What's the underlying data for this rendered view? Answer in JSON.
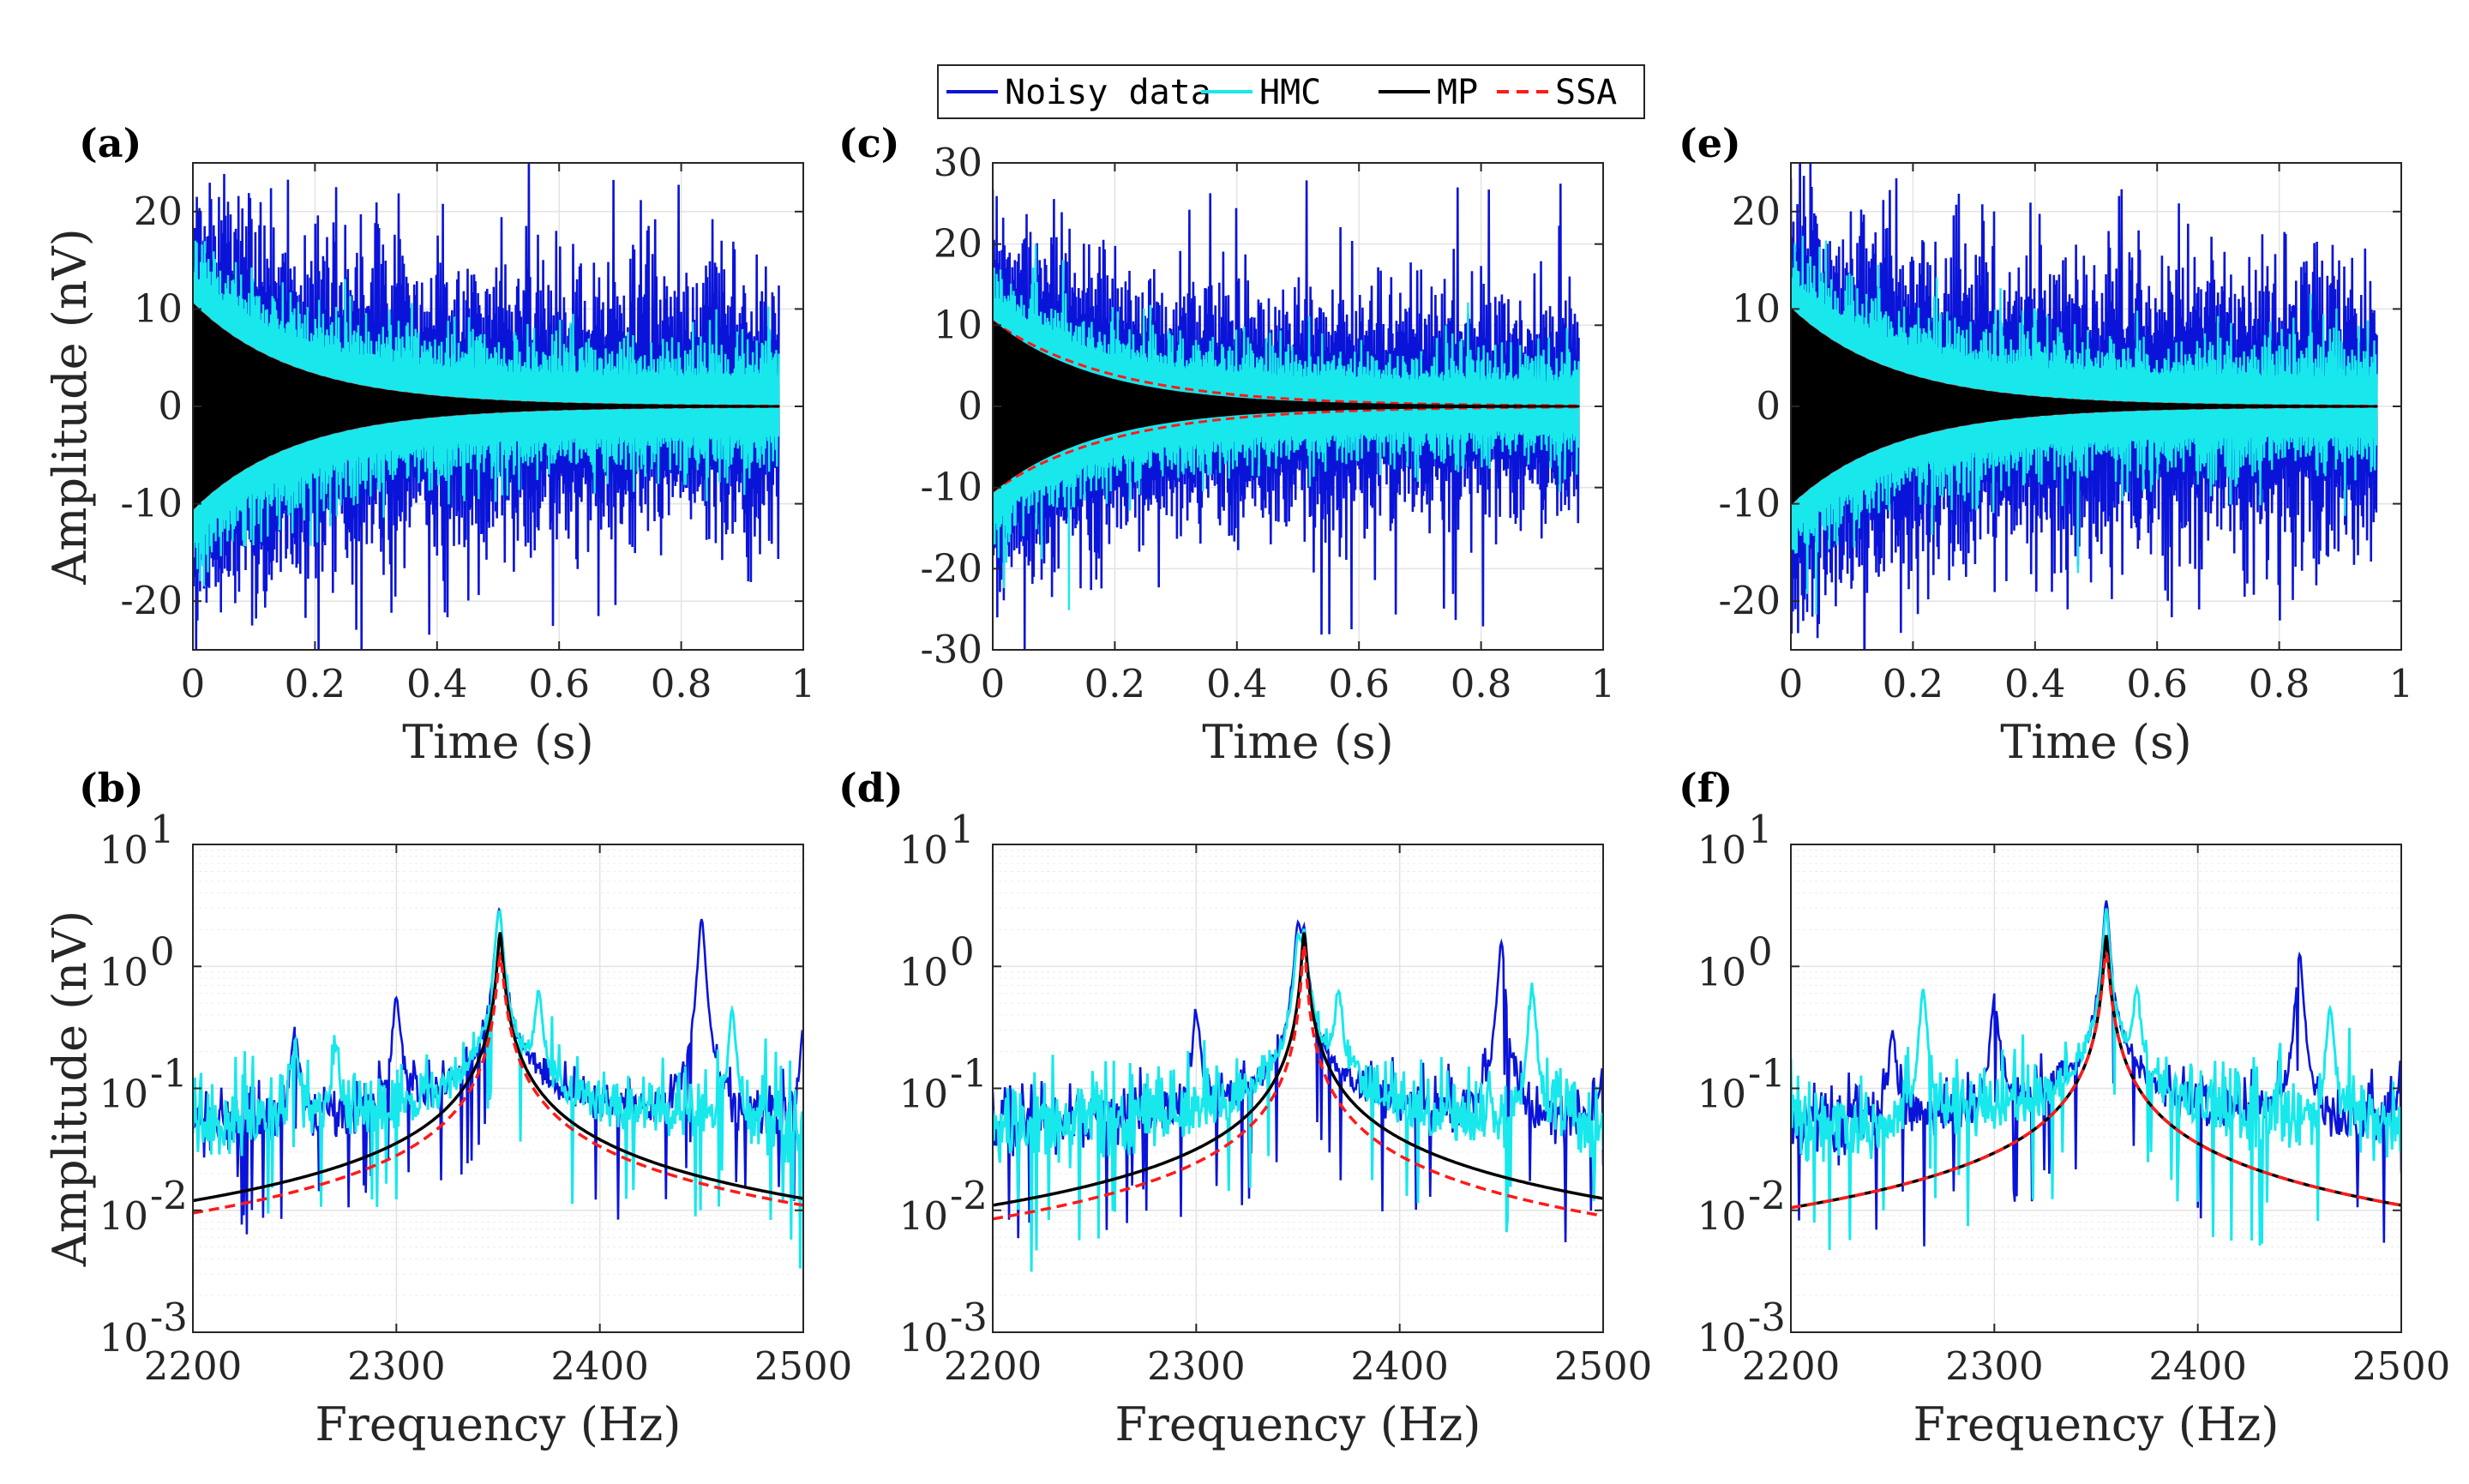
{
  "legend": {
    "entries": [
      {
        "label": "Noisy data",
        "color": "#0a14d8",
        "dash": false
      },
      {
        "label": "HMC",
        "color": "#18e8ec",
        "dash": false
      },
      {
        "label": "MP",
        "color": "#000000",
        "dash": false
      },
      {
        "label": "SSA",
        "color": "#ff1a1a",
        "dash": true
      }
    ]
  },
  "colors": {
    "noisy": "#0a14d8",
    "hmc": "#18e8ec",
    "mp": "#000000",
    "ssa": "#ff1a1a"
  },
  "chart_data": [
    {
      "panel": "(a)",
      "type": "line",
      "domain": "time",
      "xlabel": "Time (s)",
      "ylabel": "Amplitude (nV)",
      "xlim": [
        0,
        1
      ],
      "ylim": [
        -25,
        25
      ],
      "xticks": [
        0,
        0.2,
        0.4,
        0.6,
        0.8,
        1
      ],
      "xticklabels": [
        "0",
        "0.2",
        "0.4",
        "0.6",
        "0.8",
        "1"
      ],
      "yticks": [
        -20,
        -10,
        0,
        10,
        20
      ],
      "yticklabels": [
        "-20",
        "-10",
        "0",
        "10",
        "20"
      ],
      "grid": true,
      "data_end_time": 0.96,
      "series": [
        {
          "name": "Noisy data",
          "envelope": "peaks ~±15 nV, max ~25 nV"
        },
        {
          "name": "HMC",
          "envelope": "~±8 nV"
        },
        {
          "name": "MP",
          "initial_amplitude": 10.5,
          "decay_time_s": 0.17
        },
        {
          "name": "SSA",
          "initial_amplitude": 10.5,
          "decay_time_s": 0.17
        }
      ]
    },
    {
      "panel": "(c)",
      "type": "line",
      "domain": "time",
      "xlabel": "Time (s)",
      "ylabel": "",
      "xlim": [
        0,
        1
      ],
      "ylim": [
        -30,
        30
      ],
      "xticks": [
        0,
        0.2,
        0.4,
        0.6,
        0.8,
        1
      ],
      "xticklabels": [
        "0",
        "0.2",
        "0.4",
        "0.6",
        "0.8",
        "1"
      ],
      "yticks": [
        -30,
        -20,
        -10,
        0,
        10,
        20,
        30
      ],
      "yticklabels": [
        "-30",
        "-20",
        "-10",
        "0",
        "10",
        "20",
        "30"
      ],
      "grid": true,
      "data_end_time": 0.96,
      "series": [
        {
          "name": "Noisy data",
          "envelope": "peaks ~±16 nV, max ~29 nV"
        },
        {
          "name": "HMC",
          "envelope": "~±8 nV"
        },
        {
          "name": "MP",
          "initial_amplitude": 10.5,
          "decay_time_s": 0.17
        },
        {
          "name": "SSA",
          "initial_amplitude": 10.5,
          "decay_time_s": 0.2
        }
      ]
    },
    {
      "panel": "(e)",
      "type": "line",
      "domain": "time",
      "xlabel": "Time (s)",
      "ylabel": "",
      "xlim": [
        0,
        1
      ],
      "ylim": [
        -25,
        25
      ],
      "xticks": [
        0,
        0.2,
        0.4,
        0.6,
        0.8,
        1
      ],
      "xticklabels": [
        "0",
        "0.2",
        "0.4",
        "0.6",
        "0.8",
        "1"
      ],
      "yticks": [
        -20,
        -10,
        0,
        10,
        20
      ],
      "yticklabels": [
        "-20",
        "-10",
        "0",
        "10",
        "20"
      ],
      "grid": true,
      "data_end_time": 0.96,
      "series": [
        {
          "name": "Noisy data",
          "envelope": "peaks ~±16 nV, max ~26 nV"
        },
        {
          "name": "HMC",
          "envelope": "~±8 nV"
        },
        {
          "name": "MP",
          "initial_amplitude": 10,
          "decay_time_s": 0.17
        },
        {
          "name": "SSA",
          "initial_amplitude": 10,
          "decay_time_s": 0.17
        }
      ]
    },
    {
      "panel": "(b)",
      "type": "line",
      "domain": "frequency",
      "xlabel": "Frequency (Hz)",
      "ylabel": "Amplitude (nV)",
      "xlim": [
        2200,
        2500
      ],
      "ylim": [
        0.001,
        10
      ],
      "yscale": "log",
      "xticks": [
        2200,
        2300,
        2400,
        2500
      ],
      "xticklabels": [
        "2200",
        "2300",
        "2400",
        "2500"
      ],
      "yticks": [
        0.001,
        0.01,
        0.1,
        1,
        10
      ],
      "yticklabels": [
        "10",
        "10",
        "10",
        "10",
        "10"
      ],
      "ytickexponents": [
        "-3",
        "-2",
        "-1",
        "0",
        "1"
      ],
      "grid": true,
      "series": [
        {
          "name": "Noisy data",
          "baseline": 0.04,
          "peaks": [
            [
              2250,
              0.25
            ],
            [
              2300,
              0.5
            ],
            [
              2350,
              1.5
            ],
            [
              2450,
              2.4
            ],
            [
              2500,
              0.25
            ]
          ]
        },
        {
          "name": "HMC",
          "baseline": 0.04,
          "peaks": [
            [
              2250,
              0.2
            ],
            [
              2270,
              0.15
            ],
            [
              2350,
              1.4
            ],
            [
              2370,
              0.5
            ],
            [
              2465,
              0.4
            ]
          ]
        },
        {
          "name": "MP",
          "center_hz": 2351,
          "peak": 1.9,
          "value_at_2200": 0.012,
          "value_at_2500": 0.0125
        },
        {
          "name": "SSA",
          "center_hz": 2351,
          "peak": 1.2,
          "value_at_2200": 0.0095,
          "value_at_2500": 0.011
        }
      ]
    },
    {
      "panel": "(d)",
      "type": "line",
      "domain": "frequency",
      "xlabel": "Frequency (Hz)",
      "ylabel": "",
      "xlim": [
        2200,
        2500
      ],
      "ylim": [
        0.001,
        10
      ],
      "yscale": "log",
      "xticks": [
        2200,
        2300,
        2400,
        2500
      ],
      "xticklabels": [
        "2200",
        "2300",
        "2400",
        "2500"
      ],
      "yticks": [
        0.001,
        0.01,
        0.1,
        1,
        10
      ],
      "yticklabels": [
        "10",
        "10",
        "10",
        "10",
        "10"
      ],
      "ytickexponents": [
        "-3",
        "-2",
        "-1",
        "0",
        "1"
      ],
      "grid": true,
      "series": [
        {
          "name": "Noisy data",
          "baseline": 0.04,
          "peaks": [
            [
              2300,
              0.35
            ],
            [
              2350,
              1.8
            ],
            [
              2450,
              1.5
            ],
            [
              2500,
              0.1
            ]
          ]
        },
        {
          "name": "HMC",
          "baseline": 0.04,
          "peaks": [
            [
              2350,
              1.3
            ],
            [
              2370,
              0.5
            ],
            [
              2465,
              0.6
            ]
          ]
        },
        {
          "name": "MP",
          "center_hz": 2353,
          "peak": 1.9,
          "value_at_2200": 0.011,
          "value_at_2500": 0.0125
        },
        {
          "name": "SSA",
          "center_hz": 2353,
          "peak": 1.5,
          "value_at_2200": 0.0085,
          "value_at_2500": 0.009
        }
      ]
    },
    {
      "panel": "(f)",
      "type": "line",
      "domain": "frequency",
      "xlabel": "Frequency (Hz)",
      "ylabel": "",
      "xlim": [
        2200,
        2500
      ],
      "ylim": [
        0.001,
        10
      ],
      "yscale": "log",
      "xticks": [
        2200,
        2300,
        2400,
        2500
      ],
      "xticklabels": [
        "2200",
        "2300",
        "2400",
        "2500"
      ],
      "yticks": [
        0.001,
        0.01,
        0.1,
        1,
        10
      ],
      "yticklabels": [
        "10",
        "10",
        "10",
        "10",
        "10"
      ],
      "ytickexponents": [
        "-3",
        "-2",
        "-1",
        "0",
        "1"
      ],
      "grid": true,
      "series": [
        {
          "name": "Noisy data",
          "baseline": 0.04,
          "peaks": [
            [
              2250,
              0.25
            ],
            [
              2300,
              0.5
            ],
            [
              2355,
              1.8
            ],
            [
              2450,
              1.2
            ],
            [
              2500,
              0.1
            ]
          ]
        },
        {
          "name": "HMC",
          "baseline": 0.04,
          "peaks": [
            [
              2265,
              0.6
            ],
            [
              2355,
              1.3
            ],
            [
              2370,
              0.5
            ],
            [
              2465,
              0.4
            ]
          ]
        },
        {
          "name": "MP",
          "center_hz": 2355,
          "peak": 1.8,
          "value_at_2200": 0.0105,
          "value_at_2500": 0.011
        },
        {
          "name": "SSA",
          "center_hz": 2355,
          "peak": 1.3,
          "value_at_2200": 0.0105,
          "value_at_2500": 0.011
        }
      ]
    }
  ]
}
